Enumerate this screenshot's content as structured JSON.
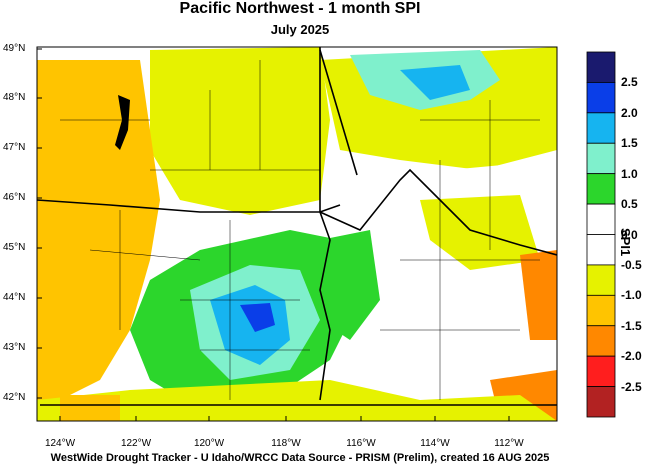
{
  "title": "Pacific Northwest - 1 month SPI",
  "subtitle": "July 2025",
  "footer": "WestWide Drought Tracker - U Idaho/WRCC  Data Source - PRISM (Prelim), created 16 AUG 2025",
  "map": {
    "region": "Pacific Northwest",
    "variable": "SPI1",
    "lat_labels": [
      "49°N",
      "48°N",
      "47°N",
      "46°N",
      "45°N",
      "44°N",
      "43°N",
      "42°N"
    ],
    "lon_labels": [
      "124°W",
      "122°W",
      "120°W",
      "118°W",
      "116°W",
      "114°W",
      "112°W"
    ],
    "lat_range": [
      41.5,
      49
    ],
    "lon_range": [
      -125,
      -110.8
    ]
  },
  "colorbar": {
    "title": "SPI1",
    "bins": [
      {
        "color": "#1a1a6e",
        "label": "2.5"
      },
      {
        "color": "#0a3ee8",
        "label": "2.0"
      },
      {
        "color": "#16b4f0",
        "label": "1.5"
      },
      {
        "color": "#7ff0cc",
        "label": "1.0"
      },
      {
        "color": "#2cd62c",
        "label": "0.5"
      },
      {
        "color": "#ffffff",
        "label": "0.0"
      },
      {
        "color": "#ffffff",
        "label": "-0.5"
      },
      {
        "color": "#e6f200",
        "label": "-1.0"
      },
      {
        "color": "#ffc400",
        "label": "-1.5"
      },
      {
        "color": "#ff8800",
        "label": "-2.0"
      },
      {
        "color": "#ff1e1e",
        "label": "-2.5"
      },
      {
        "color": "#b22222",
        "label": ""
      }
    ]
  },
  "colors": {
    "dry_moderate": "#ffc400",
    "dry_slight": "#e6f200",
    "normal": "#ffffff",
    "wet_slight": "#2cd62c",
    "wet_moderate": "#7ff0cc",
    "wet_severe": "#16b4f0",
    "wet_extreme": "#0a3ee8",
    "water": "#000000"
  }
}
